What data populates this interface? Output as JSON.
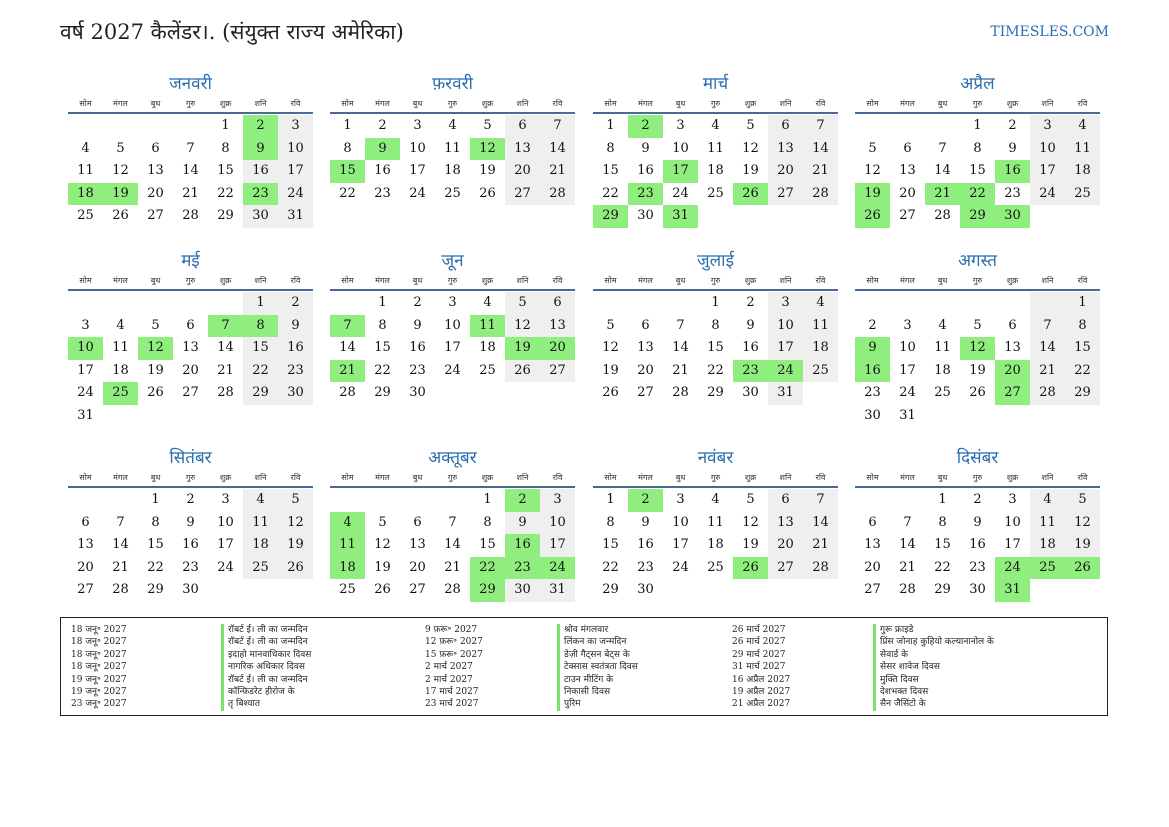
{
  "header": {
    "title": "वर्ष 2027 कैलेंडर।. (संयुक्त राज्य अमेरिका)",
    "site": "TIMESLES.COM"
  },
  "weekdays": [
    "सोम",
    "मंगल",
    "बुध",
    "गुरु",
    "शुक्र",
    "शनि",
    "रवि"
  ],
  "colors": {
    "accent": "#2a6db0",
    "holiday": "#90ee7e",
    "weekend": "#efefef"
  },
  "months": [
    {
      "name": "जनवरी",
      "offset": 4,
      "days": 31,
      "holidays": [
        2,
        9,
        18,
        19,
        23
      ]
    },
    {
      "name": "फ़रवरी",
      "offset": 0,
      "days": 28,
      "holidays": [
        9,
        12,
        15
      ]
    },
    {
      "name": "मार्च",
      "offset": 0,
      "days": 31,
      "holidays": [
        2,
        17,
        23,
        26,
        29,
        31
      ]
    },
    {
      "name": "अप्रैल",
      "offset": 3,
      "days": 30,
      "holidays": [
        16,
        19,
        21,
        22,
        26,
        29,
        30
      ]
    },
    {
      "name": "मई",
      "offset": 5,
      "days": 31,
      "holidays": [
        7,
        8,
        10,
        12,
        25
      ]
    },
    {
      "name": "जून",
      "offset": 1,
      "days": 30,
      "holidays": [
        7,
        11,
        19,
        20,
        21
      ]
    },
    {
      "name": "जुलाई",
      "offset": 3,
      "days": 31,
      "holidays": [
        23,
        24
      ]
    },
    {
      "name": "अगस्त",
      "offset": 6,
      "days": 31,
      "holidays": [
        9,
        12,
        16,
        20,
        27
      ]
    },
    {
      "name": "सितंबर",
      "offset": 2,
      "days": 30,
      "holidays": []
    },
    {
      "name": "अक्तूबर",
      "offset": 4,
      "days": 31,
      "holidays": [
        2,
        4,
        11,
        16,
        18,
        22,
        23,
        24,
        29
      ]
    },
    {
      "name": "नवंबर",
      "offset": 0,
      "days": 30,
      "holidays": [
        2,
        26
      ]
    },
    {
      "name": "दिसंबर",
      "offset": 2,
      "days": 31,
      "holidays": [
        24,
        25,
        26,
        31
      ]
    }
  ],
  "holiday_list": [
    [
      {
        "date": "18 जनू॰ 2027",
        "name": "रॉबर्ट ई। ली का जन्मदिन"
      },
      {
        "date": "18 जनू॰ 2027",
        "name": "रॉबर्ट ई। ली का जन्मदिन"
      },
      {
        "date": "18 जनू॰ 2027",
        "name": "इदाहो मानवाधिकार दिवस"
      },
      {
        "date": "18 जनू॰ 2027",
        "name": "नागरिक अधिकार दिवस"
      },
      {
        "date": "19 जनू॰ 2027",
        "name": "रॉबर्ट ई। ली का जन्मदिन"
      },
      {
        "date": "19 जनू॰ 2027",
        "name": "कॉन्फ़िडरेट हीरोज के"
      },
      {
        "date": "23 जनू॰ 2027",
        "name": "तृ बिश्यात"
      }
    ],
    [
      {
        "date": "9 फ़रू॰ 2027",
        "name": "श्रोव मंगलवार"
      },
      {
        "date": "12 फ़रू॰ 2027",
        "name": "लिंकन का जन्मदिन"
      },
      {
        "date": "15 फ़रू॰ 2027",
        "name": "डेज़ी गैट्सन बेट्स के"
      },
      {
        "date": "2 मार्च 2027",
        "name": "टेक्सास स्वतंत्रता दिवस"
      },
      {
        "date": "2 मार्च 2027",
        "name": "टाउन मीटिंग के"
      },
      {
        "date": "17 मार्च 2027",
        "name": "निकासी दिवस"
      },
      {
        "date": "23 मार्च 2027",
        "name": "पुरिम"
      }
    ],
    [
      {
        "date": "26 मार्च 2027",
        "name": "गुरू फ्राइडे"
      },
      {
        "date": "26 मार्च 2027",
        "name": "प्रिंस जोनाह कुहियो कल्यानानोल के"
      },
      {
        "date": "29 मार्च 2027",
        "name": "सेवार्ड के"
      },
      {
        "date": "31 मार्च 2027",
        "name": "सेसर शावेज दिवस"
      },
      {
        "date": "16 अप्रैल 2027",
        "name": "मुक्ति दिवस"
      },
      {
        "date": "19 अप्रैल 2027",
        "name": "देशभक्त दिवस"
      },
      {
        "date": "21 अप्रैल 2027",
        "name": "सैन जैसिंटो के"
      }
    ]
  ]
}
